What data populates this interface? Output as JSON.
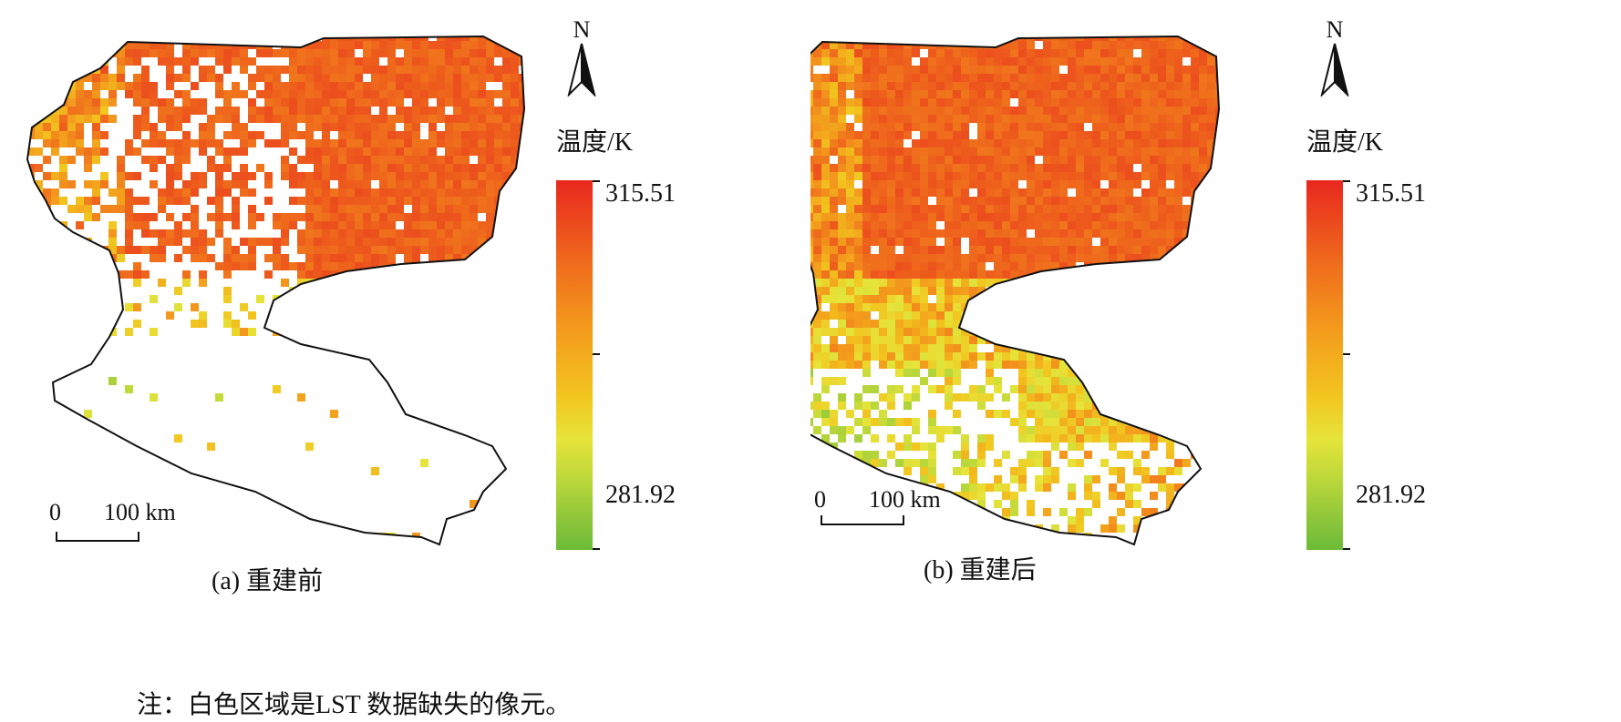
{
  "panels": [
    {
      "id": "a",
      "caption": "(a) 重建前",
      "north_label": "N",
      "colorbar": {
        "title": "温度/K",
        "max": "315.51",
        "min": "281.92"
      },
      "scale": {
        "zero": "0",
        "distance": "100 km"
      },
      "state": "before"
    },
    {
      "id": "b",
      "caption": "(b) 重建后",
      "north_label": "N",
      "colorbar": {
        "title": "温度/K",
        "max": "315.51",
        "min": "281.92"
      },
      "scale": {
        "zero": "0",
        "distance": "100 km"
      },
      "state": "after"
    }
  ],
  "note": "注：白色区域是LST 数据缺失的像元。",
  "colors": {
    "high": "#e8281e",
    "mid_high": "#f39a1c",
    "mid": "#e6e43a",
    "low": "#6bbb38",
    "missing": "#ffffff",
    "boundary": "#111111"
  }
}
